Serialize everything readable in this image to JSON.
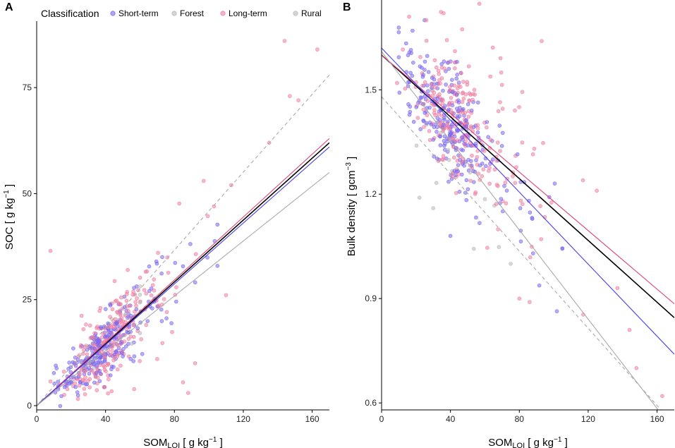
{
  "legend": {
    "title": "Classification",
    "entries": [
      {
        "label": "Short-term",
        "color": "#7b68ee"
      },
      {
        "label": "Forest",
        "color": "#b8b8b8"
      },
      {
        "label": "Long-term",
        "color": "#ee7fa0"
      },
      {
        "label": "Rural",
        "color": "#b8b8b8"
      }
    ]
  },
  "chart_data": [
    {
      "panel": "A",
      "type": "scatter",
      "xlabel_main": "SOM",
      "xlabel_sub": "LOI",
      "xlabel_units": " [ g  kg",
      "xlabel_exp": "−1",
      "xlabel_close": " ]",
      "ylabel_main": "SOC  [ g  kg",
      "ylabel_exp": "−1",
      "ylabel_close": " ]",
      "xlim": [
        0,
        170
      ],
      "ylim": [
        -1,
        90
      ],
      "xticks": [
        0,
        40,
        80,
        120,
        160
      ],
      "xtick_labels": [
        "0",
        "40",
        "80",
        "120",
        "160"
      ],
      "yticks": [
        0,
        25,
        50,
        75
      ],
      "ytick_labels": [
        "0",
        "25",
        "50",
        "75"
      ],
      "fit_lines": [
        {
          "name": "Overall",
          "color": "#000000",
          "dash": "",
          "x": [
            0,
            170
          ],
          "y": [
            0,
            62
          ]
        },
        {
          "name": "Long-term",
          "color": "#e0447a",
          "dash": "",
          "x": [
            0,
            170
          ],
          "y": [
            0,
            63
          ]
        },
        {
          "name": "Short-term",
          "color": "#4a3ee8",
          "dash": "",
          "x": [
            0,
            170
          ],
          "y": [
            0,
            61
          ]
        },
        {
          "name": "Forest",
          "color": "#aaaaaa",
          "dash": "",
          "x": [
            0,
            170
          ],
          "y": [
            0,
            55
          ]
        },
        {
          "name": "Rural",
          "color": "#aaaaaa",
          "dash": "5,4",
          "x": [
            0,
            170
          ],
          "y": [
            0,
            78
          ]
        }
      ],
      "series": [
        {
          "name": "Short-term",
          "color": "#7b68ee",
          "n": 260,
          "x_range": [
            10,
            105
          ],
          "x_peak": 35,
          "slope": 0.36,
          "intercept": 0,
          "noise": 3.5
        },
        {
          "name": "Long-term",
          "color": "#ee7fa0",
          "n": 240,
          "x_range": [
            8,
            110
          ],
          "x_peak": 40,
          "slope": 0.37,
          "intercept": 0,
          "noise": 4.5
        },
        {
          "name": "Forest",
          "color": "#b8b8b8",
          "n": 10,
          "x_range": [
            20,
            60
          ],
          "x_peak": 35,
          "slope": 0.33,
          "intercept": 0,
          "noise": 2
        },
        {
          "name": "Rural",
          "color": "#b8b8b8",
          "n": 8,
          "x_range": [
            20,
            60
          ],
          "x_peak": 35,
          "slope": 0.45,
          "intercept": 0,
          "noise": 2
        }
      ],
      "extra_points": [
        {
          "series": "Long-term",
          "x": 144,
          "y": 86
        },
        {
          "series": "Long-term",
          "x": 163,
          "y": 84
        },
        {
          "series": "Long-term",
          "x": 147,
          "y": 73
        },
        {
          "series": "Long-term",
          "x": 152,
          "y": 72
        },
        {
          "series": "Long-term",
          "x": 8,
          "y": 36.5
        },
        {
          "series": "Long-term",
          "x": 135,
          "y": 62
        },
        {
          "series": "Long-term",
          "x": 113,
          "y": 52
        },
        {
          "series": "Long-term",
          "x": 97,
          "y": 53
        },
        {
          "series": "Long-term",
          "x": 103,
          "y": 47
        },
        {
          "series": "Long-term",
          "x": 88,
          "y": 3
        },
        {
          "series": "Long-term",
          "x": 85,
          "y": 5.5
        },
        {
          "series": "Long-term",
          "x": 92,
          "y": 10
        }
      ]
    },
    {
      "panel": "B",
      "type": "scatter",
      "xlabel_main": "SOM",
      "xlabel_sub": "LOI",
      "xlabel_units": " [ g  kg",
      "xlabel_exp": "−1",
      "xlabel_close": " ]",
      "ylabel_main": "Bulk density  [ gcm",
      "ylabel_exp": "−3",
      "ylabel_close": " ]",
      "xlim": [
        0,
        170
      ],
      "ylim": [
        0.58,
        1.75
      ],
      "xticks": [
        0,
        40,
        80,
        120,
        160
      ],
      "xtick_labels": [
        "0",
        "40",
        "80",
        "120",
        "160"
      ],
      "yticks": [
        0.6,
        0.9,
        1.2,
        1.5
      ],
      "ytick_labels": [
        "0.6",
        "0.9",
        "1.2",
        "1.5"
      ],
      "fit_lines": [
        {
          "name": "Overall",
          "color": "#000000",
          "dash": "",
          "x": [
            0,
            170
          ],
          "y": [
            1.6,
            0.845
          ]
        },
        {
          "name": "Long-term",
          "color": "#e0447a",
          "dash": "",
          "x": [
            0,
            170
          ],
          "y": [
            1.6,
            0.885
          ]
        },
        {
          "name": "Short-term",
          "color": "#4a3ee8",
          "dash": "",
          "x": [
            0,
            170
          ],
          "y": [
            1.62,
            0.74
          ]
        },
        {
          "name": "Forest",
          "color": "#aaaaaa",
          "dash": "",
          "x": [
            0,
            163
          ],
          "y": [
            1.61,
            0.565
          ]
        },
        {
          "name": "Rural",
          "color": "#aaaaaa",
          "dash": "5,4",
          "x": [
            0,
            165
          ],
          "y": [
            1.48,
            0.565
          ]
        }
      ],
      "series": [
        {
          "name": "Short-term",
          "color": "#7b68ee",
          "n": 260,
          "x_range": [
            10,
            105
          ],
          "x_peak": 35,
          "slope": -0.0052,
          "intercept": 1.62,
          "noise": 0.075
        },
        {
          "name": "Long-term",
          "color": "#ee7fa0",
          "n": 240,
          "x_range": [
            8,
            120
          ],
          "x_peak": 40,
          "slope": -0.0042,
          "intercept": 1.6,
          "noise": 0.09
        },
        {
          "name": "Forest",
          "color": "#b8b8b8",
          "n": 8,
          "x_range": [
            15,
            60
          ],
          "x_peak": 35,
          "slope": -0.006,
          "intercept": 1.6,
          "noise": 0.05
        },
        {
          "name": "Rural",
          "color": "#b8b8b8",
          "n": 6,
          "x_range": [
            15,
            80
          ],
          "x_peak": 35,
          "slope": -0.006,
          "intercept": 1.48,
          "noise": 0.05
        }
      ],
      "extra_points": [
        {
          "series": "Long-term",
          "x": 36,
          "y": 1.72
        },
        {
          "series": "Long-term",
          "x": 16,
          "y": 1.71
        },
        {
          "series": "Long-term",
          "x": 26,
          "y": 1.7
        },
        {
          "series": "Long-term",
          "x": 93,
          "y": 1.64
        },
        {
          "series": "Long-term",
          "x": 163,
          "y": 0.62
        },
        {
          "series": "Long-term",
          "x": 144,
          "y": 0.81
        },
        {
          "series": "Long-term",
          "x": 148,
          "y": 0.7
        },
        {
          "series": "Long-term",
          "x": 137,
          "y": 0.93
        },
        {
          "series": "Long-term",
          "x": 117,
          "y": 1.24
        },
        {
          "series": "Long-term",
          "x": 125,
          "y": 1.21
        },
        {
          "series": "Long-term",
          "x": 80,
          "y": 0.9
        },
        {
          "series": "Long-term",
          "x": 86,
          "y": 0.89
        },
        {
          "series": "Short-term",
          "x": 25,
          "y": 1.7
        },
        {
          "series": "Short-term",
          "x": 18,
          "y": 1.67
        },
        {
          "series": "Short-term",
          "x": 40,
          "y": 1.08
        },
        {
          "series": "Short-term",
          "x": 88,
          "y": 1.03
        },
        {
          "series": "Rural",
          "x": 22,
          "y": 1.19
        },
        {
          "series": "Rural",
          "x": 30,
          "y": 1.16
        },
        {
          "series": "Forest",
          "x": 75,
          "y": 1.0
        }
      ]
    }
  ]
}
